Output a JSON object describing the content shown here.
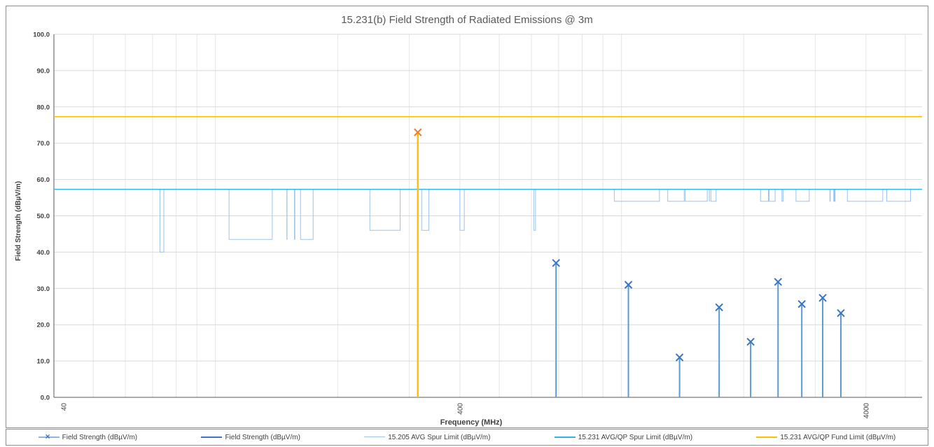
{
  "chart_data": {
    "type": "scatter",
    "title": "15.231(b) Field Strength of Radiated Emissions @ 3m",
    "xlabel": "Frequency (MHz)",
    "ylabel": "Field Strength (dBµV/m)",
    "x_scale": "log",
    "xlim": [
      40,
      5500
    ],
    "ylim": [
      0,
      100
    ],
    "y_ticks": [
      "0.0",
      "10.0",
      "20.0",
      "30.0",
      "40.0",
      "50.0",
      "60.0",
      "70.0",
      "80.0",
      "90.0",
      "100.0"
    ],
    "x_ticks": [
      {
        "value": 40,
        "label": "40"
      },
      {
        "value": 400,
        "label": "400"
      },
      {
        "value": 4000,
        "label": "4000"
      }
    ],
    "grid": true,
    "legend_position": "bottom",
    "series": [
      {
        "name": "Field Strength (dBµV/m)",
        "kind": "markers",
        "color": "#3a74c4",
        "points": [
          {
            "x": 315,
            "y": 73.0,
            "color": "#ed7d31"
          },
          {
            "x": 690,
            "y": 37.0
          },
          {
            "x": 1040,
            "y": 31.0
          },
          {
            "x": 1390,
            "y": 11.0
          },
          {
            "x": 1740,
            "y": 24.8
          },
          {
            "x": 2080,
            "y": 15.3
          },
          {
            "x": 2430,
            "y": 31.8
          },
          {
            "x": 2780,
            "y": 25.7
          },
          {
            "x": 3130,
            "y": 27.4
          },
          {
            "x": 3470,
            "y": 23.2
          }
        ]
      },
      {
        "name": "Field Strength (dBµV/m)",
        "kind": "stems",
        "color": "#5b9bd5"
      },
      {
        "name": "15.205 AVG Spur Limit (dBµV/m)",
        "kind": "stepped",
        "color": "#9dc3e6",
        "base": 57.3,
        "bands": [
          {
            "f1": 73,
            "f2": 74.6,
            "level": 40.0
          },
          {
            "f1": 108,
            "f2": 138,
            "level": 43.5
          },
          {
            "f1": 149.9,
            "f2": 150.05,
            "level": 43.5
          },
          {
            "f1": 156.52,
            "f2": 156.9,
            "level": 43.5
          },
          {
            "f1": 162.0,
            "f2": 174,
            "level": 43.5
          },
          {
            "f1": 240,
            "f2": 285,
            "level": 46.0
          },
          {
            "f1": 322,
            "f2": 335.4,
            "level": 46.0
          },
          {
            "f1": 399.9,
            "f2": 410,
            "level": 46.0
          },
          {
            "f1": 608,
            "f2": 614,
            "level": 46.0
          },
          {
            "f1": 960,
            "f2": 1240,
            "level": 54.0
          },
          {
            "f1": 1300,
            "f2": 1427,
            "level": 54.0
          },
          {
            "f1": 1435,
            "f2": 1626.5,
            "level": 54.0
          },
          {
            "f1": 1645.5,
            "f2": 1646.5,
            "level": 54.0
          },
          {
            "f1": 1660,
            "f2": 1710,
            "level": 54.0
          },
          {
            "f1": 2200,
            "f2": 2300,
            "level": 54.0
          },
          {
            "f1": 2310,
            "f2": 2390,
            "level": 54.0
          },
          {
            "f1": 2483.5,
            "f2": 2500,
            "level": 54.0
          },
          {
            "f1": 2690,
            "f2": 2900,
            "level": 54.0
          },
          {
            "f1": 3260,
            "f2": 3267,
            "level": 54.0
          },
          {
            "f1": 3332,
            "f2": 3339,
            "level": 54.0
          },
          {
            "f1": 3345.8,
            "f2": 3358,
            "level": 54.0
          },
          {
            "f1": 3600,
            "f2": 4400,
            "level": 54.0
          },
          {
            "f1": 4500,
            "f2": 5150,
            "level": 54.0
          }
        ]
      },
      {
        "name": "15.231 AVG/QP Spur Limit (dBµV/m)",
        "kind": "hline",
        "color": "#33b5e8",
        "y": 57.3
      },
      {
        "name": "15.231 AVG/QP Fund Limit (dBµV/m)",
        "kind": "hline",
        "color": "#ffc000",
        "y": 77.3
      }
    ]
  }
}
